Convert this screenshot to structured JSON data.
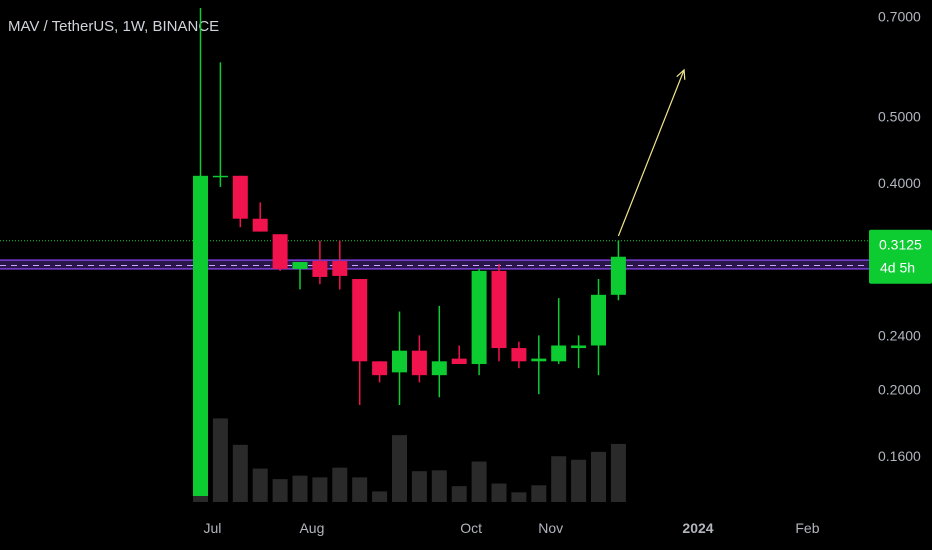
{
  "header": {
    "title": "MAV / TetherUS, 1W, BINANCE"
  },
  "colors": {
    "up": "#0dcc32",
    "down": "#f0134d",
    "volume": "#2a2a2a",
    "text": "#b2b5be",
    "price_line": "#0dcc32",
    "purple_band": "#7b3fd6",
    "arrow": "#f0e68c"
  },
  "chart_data": {
    "type": "candlestick",
    "scale": "log",
    "ylim": [
      0.14,
      0.72
    ],
    "y_ticks": [
      "0.7000",
      "0.5000",
      "0.4000",
      "0.2400",
      "0.2000",
      "0.1600"
    ],
    "x_ticks": [
      {
        "label": "Jul",
        "week": 0.6
      },
      {
        "label": "Aug",
        "week": 5.6
      },
      {
        "label": "Oct",
        "week": 13.6
      },
      {
        "label": "Nov",
        "week": 17.6
      },
      {
        "label": "2024",
        "week": 25.0,
        "bold": true
      },
      {
        "label": "Feb",
        "week": 30.5
      }
    ],
    "candles": [
      {
        "o": 0.14,
        "h": 0.72,
        "l": 0.14,
        "c": 0.41,
        "v": 100
      },
      {
        "o": 0.41,
        "h": 0.6,
        "l": 0.395,
        "c": 0.41,
        "v": 95
      },
      {
        "o": 0.41,
        "h": 0.41,
        "l": 0.345,
        "c": 0.355,
        "v": 65
      },
      {
        "o": 0.355,
        "h": 0.375,
        "l": 0.34,
        "c": 0.34,
        "v": 38
      },
      {
        "o": 0.337,
        "h": 0.337,
        "l": 0.298,
        "c": 0.3,
        "v": 26
      },
      {
        "o": 0.3,
        "h": 0.305,
        "l": 0.28,
        "c": 0.307,
        "v": 30
      },
      {
        "o": 0.308,
        "h": 0.33,
        "l": 0.285,
        "c": 0.292,
        "v": 28
      },
      {
        "o": 0.308,
        "h": 0.33,
        "l": 0.28,
        "c": 0.293,
        "v": 39
      },
      {
        "o": 0.29,
        "h": 0.29,
        "l": 0.19,
        "c": 0.22,
        "v": 28
      },
      {
        "o": 0.22,
        "h": 0.22,
        "l": 0.205,
        "c": 0.21,
        "v": 12
      },
      {
        "o": 0.212,
        "h": 0.26,
        "l": 0.19,
        "c": 0.228,
        "v": 76
      },
      {
        "o": 0.228,
        "h": 0.24,
        "l": 0.205,
        "c": 0.21,
        "v": 35
      },
      {
        "o": 0.21,
        "h": 0.265,
        "l": 0.195,
        "c": 0.22,
        "v": 36
      },
      {
        "o": 0.222,
        "h": 0.232,
        "l": 0.218,
        "c": 0.218,
        "v": 18
      },
      {
        "o": 0.218,
        "h": 0.3,
        "l": 0.21,
        "c": 0.298,
        "v": 46
      },
      {
        "o": 0.298,
        "h": 0.305,
        "l": 0.22,
        "c": 0.23,
        "v": 21
      },
      {
        "o": 0.23,
        "h": 0.235,
        "l": 0.215,
        "c": 0.22,
        "v": 11
      },
      {
        "o": 0.22,
        "h": 0.24,
        "l": 0.197,
        "c": 0.222,
        "v": 19
      },
      {
        "o": 0.22,
        "h": 0.272,
        "l": 0.218,
        "c": 0.232,
        "v": 52
      },
      {
        "o": 0.23,
        "h": 0.24,
        "l": 0.215,
        "c": 0.232,
        "v": 48
      },
      {
        "o": 0.232,
        "h": 0.29,
        "l": 0.21,
        "c": 0.275,
        "v": 57
      },
      {
        "o": 0.275,
        "h": 0.33,
        "l": 0.27,
        "c": 0.3125,
        "v": 66
      }
    ],
    "current_price": {
      "value": "0.3125",
      "countdown": "4d 5h"
    },
    "horizontal_level": 0.3125,
    "purple_band": [
      0.3,
      0.309
    ],
    "annotations": [
      {
        "type": "arrow",
        "from_week": 21.0,
        "from_value": 0.335,
        "to_week": 24.3,
        "to_value": 0.585
      }
    ]
  }
}
